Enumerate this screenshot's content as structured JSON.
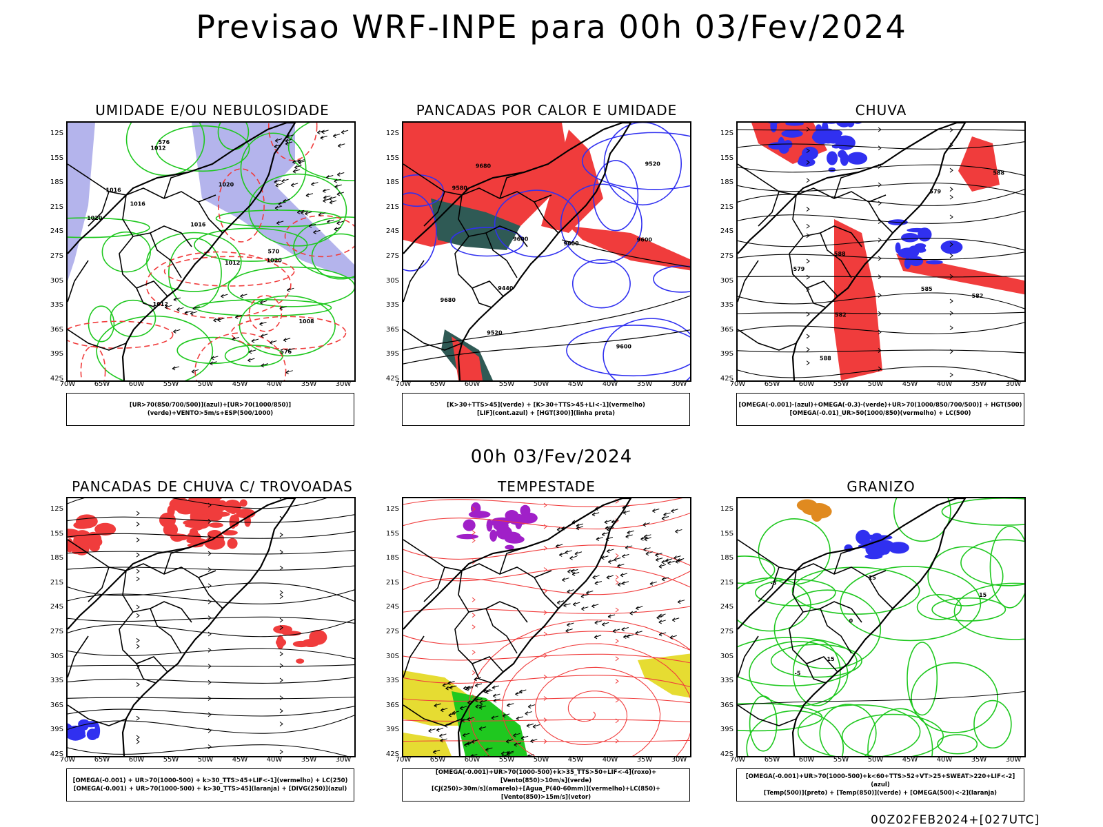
{
  "title": "Previsao WRF-INPE  para 00h 03/Fev/2024",
  "subtitle": "00h 03/Fev/2024",
  "footer": "00Z02FEB2024+[027UTC]",
  "axes": {
    "y_labels": [
      "12S",
      "15S",
      "18S",
      "21S",
      "24S",
      "27S",
      "30S",
      "33S",
      "36S",
      "39S",
      "42S"
    ],
    "x_labels": [
      "70W",
      "65W",
      "60W",
      "55W",
      "50W",
      "45W",
      "40W",
      "35W",
      "30W"
    ]
  },
  "panels": [
    {
      "id": "umidade",
      "title": "UMIDADE E/OU NEBULOSIDADE",
      "legend": [
        "[UR>70(850/700/500)](azul)+[UR>70(1000/850)](verde)+VENTO>5m/s+ESP(500/1000)"
      ],
      "labels": [
        "1016",
        "1016",
        "1016",
        "1012",
        "1012",
        "1020",
        "1020",
        "1012",
        "1008",
        "1020",
        "576",
        "570",
        "576"
      ]
    },
    {
      "id": "pancadas_calor",
      "title": "PANCADAS POR CALOR E UMIDADE",
      "legend": [
        "[K>30+TTS>45](verde) + [K>30+TTS>45+LI<-1](vermelho)",
        "[LIF](cont.azul) + [HGT(300)](linha preta)"
      ],
      "labels": [
        "9680",
        "9600",
        "9600",
        "9600",
        "9680",
        "9580",
        "9600",
        "9520",
        "9440",
        "9520"
      ]
    },
    {
      "id": "chuva",
      "title": "CHUVA",
      "legend": [
        "[OMEGA(-0.001)-(azul)+OMEGA(-0.3)-(verde)+UR>70(1000/850/700/500)] + HGT(500)",
        "[OMEGA(-0.01)_UR>50(1000/850)(vermelho) + LC(500)"
      ],
      "labels": [
        "588",
        "585",
        "588",
        "582",
        "582",
        "579",
        "579",
        "588"
      ]
    },
    {
      "id": "trovoadas",
      "title": "PANCADAS DE CHUVA C/ TROVOADAS",
      "legend": [
        "[OMEGA(-0.001) + UR>70(1000-500) + k>30_TTS>45+LIF<-1](vermelho) + LC(250)",
        "[OMEGA(-0.001) + UR>70(1000-500) + k>30_TTS>45](laranja) + [DIVG(250)](azul)"
      ],
      "labels": []
    },
    {
      "id": "tempestade",
      "title": "TEMPESTADE",
      "legend": [
        "[OMEGA(-0.001)+UR>70(1000-500)+k>35_TTS>50+LIF<-4](roxo)+[Vento(850)>10m/s](verde)",
        "[CJ(250)>30m/s](amarelo)+[Agua_P(40-60mm)](vermelho)+LC(850)+[Vento(850)>15m/s](vetor)"
      ],
      "labels": []
    },
    {
      "id": "granizo",
      "title": "GRANIZO",
      "legend": [
        "[OMEGA(-0.001)+UR>70(1000-500)+k<60+TTS>52+VT>25+SWEAT>220+LIF<-2](azul)",
        "[Temp(500)](preto) + [Temp(850)](verde) + [OMEGA(500)<-2](laranja)"
      ],
      "labels": [
        "0",
        "-5",
        "-5",
        "15",
        "15",
        "15"
      ]
    }
  ],
  "colors": {
    "red": "#f03c3c",
    "green": "#1fc81f",
    "blue": "#3030f0",
    "lavender": "#b4b4ec",
    "dkgreen": "#2f5a55",
    "yellow": "#e6dc32",
    "purple": "#a020c8",
    "orange": "#e08a20"
  }
}
